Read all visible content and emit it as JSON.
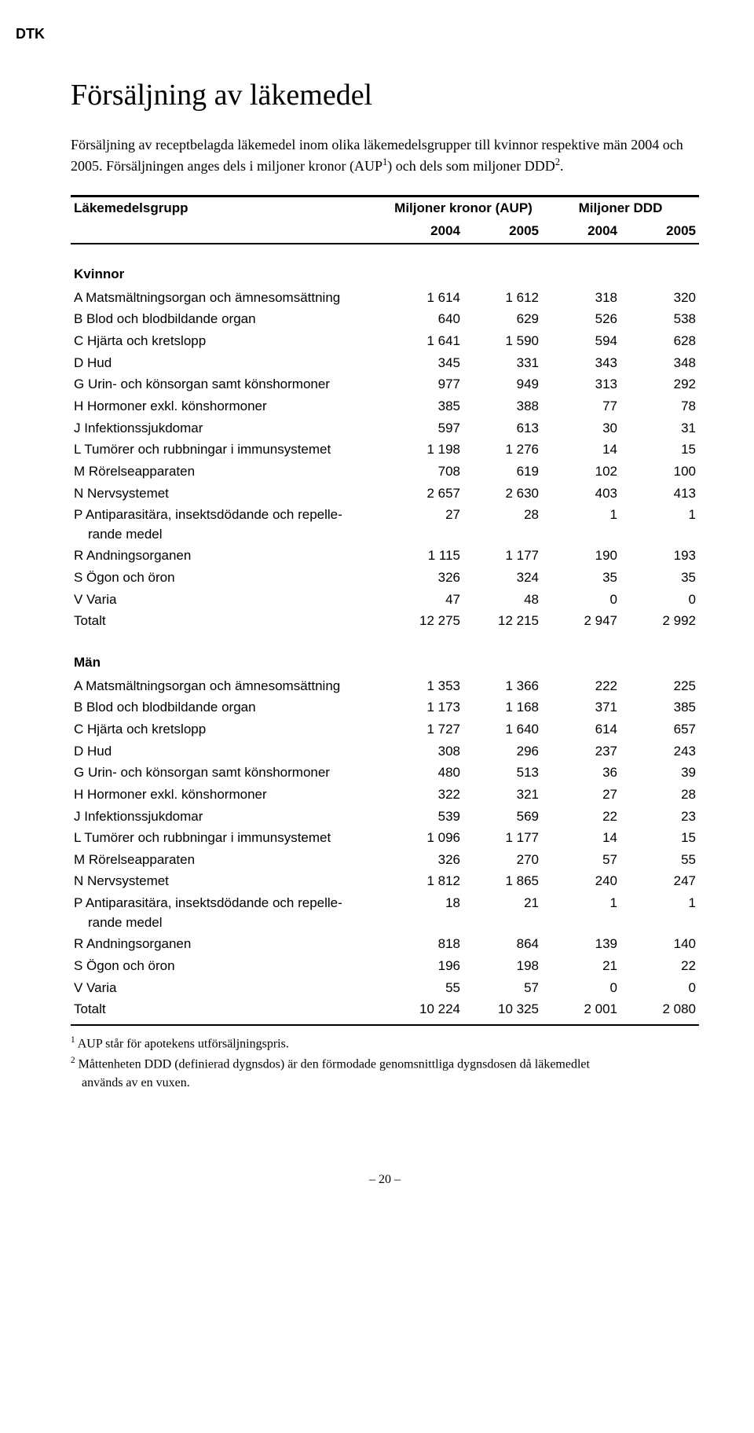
{
  "header": {
    "dtk": "DTK"
  },
  "title": "Försäljning av läkemedel",
  "intro_html": "Försäljning av receptbelagda läkemedel inom olika läkemedelsgrupper till kvinnor respektive män 2004 och 2005. Försäljningen anges dels i miljoner kronor (AUP<sup>1</sup>) och dels som miljoner DDD<sup>2</sup>.",
  "table": {
    "col_label": "Läkemedelsgrupp",
    "group1": "Miljoner kronor (AUP)",
    "group2": "Miljoner DDD",
    "years": [
      "2004",
      "2005",
      "2004",
      "2005"
    ],
    "sections": [
      {
        "title": "Kvinnor",
        "rows": [
          {
            "label": "A Matsmältningsorgan och ämnesomsättning",
            "v": [
              "1 614",
              "1 612",
              "318",
              "320"
            ]
          },
          {
            "label": "B Blod och blodbildande organ",
            "v": [
              "640",
              "629",
              "526",
              "538"
            ]
          },
          {
            "label": "C Hjärta och kretslopp",
            "v": [
              "1 641",
              "1 590",
              "594",
              "628"
            ]
          },
          {
            "label": "D Hud",
            "v": [
              "345",
              "331",
              "343",
              "348"
            ]
          },
          {
            "label": "G Urin- och könsorgan samt könshormoner",
            "v": [
              "977",
              "949",
              "313",
              "292"
            ]
          },
          {
            "label": "H Hormoner exkl. könshormoner",
            "v": [
              "385",
              "388",
              "77",
              "78"
            ]
          },
          {
            "label": "J Infektionssjukdomar",
            "v": [
              "597",
              "613",
              "30",
              "31"
            ]
          },
          {
            "label": "L Tumörer och rubbningar i immunsystemet",
            "v": [
              "1 198",
              "1 276",
              "14",
              "15"
            ]
          },
          {
            "label": "M Rörelseapparaten",
            "v": [
              "708",
              "619",
              "102",
              "100"
            ]
          },
          {
            "label": "N Nervsystemet",
            "v": [
              "2 657",
              "2 630",
              "403",
              "413"
            ]
          },
          {
            "label": "P Antiparasitära, insektsdödande och repelle-\n   rande medel",
            "v": [
              "27",
              "28",
              "1",
              "1"
            ]
          },
          {
            "label": "R Andningsorganen",
            "v": [
              "1 115",
              "1 177",
              "190",
              "193"
            ]
          },
          {
            "label": "S Ögon och öron",
            "v": [
              "326",
              "324",
              "35",
              "35"
            ]
          },
          {
            "label": "V Varia",
            "v": [
              "47",
              "48",
              "0",
              "0"
            ]
          },
          {
            "label": "Totalt",
            "v": [
              "12 275",
              "12 215",
              "2 947",
              "2 992"
            ]
          }
        ]
      },
      {
        "title": "Män",
        "rows": [
          {
            "label": "A Matsmältningsorgan och ämnesomsättning",
            "v": [
              "1 353",
              "1 366",
              "222",
              "225"
            ]
          },
          {
            "label": "B Blod och blodbildande organ",
            "v": [
              "1 173",
              "1 168",
              "371",
              "385"
            ]
          },
          {
            "label": "C Hjärta och kretslopp",
            "v": [
              "1 727",
              "1 640",
              "614",
              "657"
            ]
          },
          {
            "label": "D Hud",
            "v": [
              "308",
              "296",
              "237",
              "243"
            ]
          },
          {
            "label": "G Urin- och könsorgan samt könshormoner",
            "v": [
              "480",
              "513",
              "36",
              "39"
            ]
          },
          {
            "label": "H Hormoner exkl. könshormoner",
            "v": [
              "322",
              "321",
              "27",
              "28"
            ]
          },
          {
            "label": "J Infektionssjukdomar",
            "v": [
              "539",
              "569",
              "22",
              "23"
            ]
          },
          {
            "label": "L Tumörer och rubbningar i immunsystemet",
            "v": [
              "1 096",
              "1 177",
              "14",
              "15"
            ]
          },
          {
            "label": "M Rörelseapparaten",
            "v": [
              "326",
              "270",
              "57",
              "55"
            ]
          },
          {
            "label": "N Nervsystemet",
            "v": [
              "1 812",
              "1 865",
              "240",
              "247"
            ]
          },
          {
            "label": "P Antiparasitära, insektsdödande och repelle-\n   rande medel",
            "v": [
              "18",
              "21",
              "1",
              "1"
            ]
          },
          {
            "label": "R Andningsorganen",
            "v": [
              "818",
              "864",
              "139",
              "140"
            ]
          },
          {
            "label": "S Ögon och öron",
            "v": [
              "196",
              "198",
              "21",
              "22"
            ]
          },
          {
            "label": "V Varia",
            "v": [
              "55",
              "57",
              "0",
              "0"
            ]
          },
          {
            "label": "Totalt",
            "v": [
              "10 224",
              "10 325",
              "2 001",
              "2 080"
            ]
          }
        ]
      }
    ]
  },
  "footnotes": {
    "f1_html": "<sup>1</sup> AUP står för apotekens utförsäljningspris.",
    "f2_html": "<sup>2</sup> Måttenheten DDD (definierad dygnsdos) är den förmodade genomsnittliga dygnsdosen då läkemedlet<span class=\"fn-indent\">används av en vuxen.</span>"
  },
  "pagenum": "– 20 –"
}
